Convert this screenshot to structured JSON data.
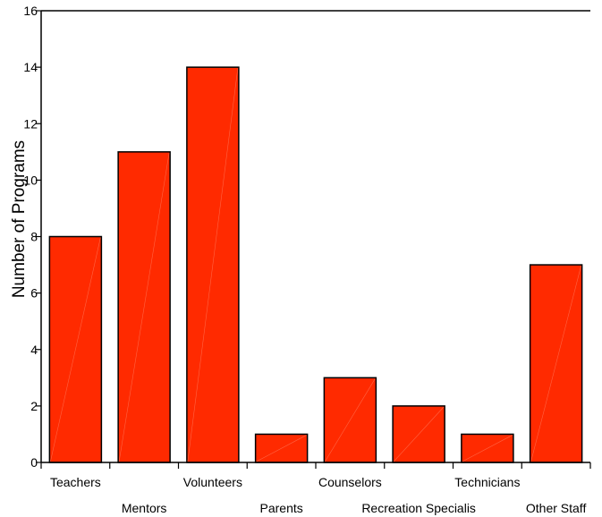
{
  "chart_data": {
    "type": "bar",
    "title": "",
    "xlabel": "",
    "ylabel": "Number of Programs",
    "ylim": [
      0,
      16
    ],
    "yticks": [
      0,
      2,
      4,
      6,
      8,
      10,
      12,
      14,
      16
    ],
    "categories": [
      "Teachers",
      "Mentors",
      "Volunteers",
      "Parents",
      "Counselors",
      "Recreation Specialis",
      "Technicians",
      "Other Staff"
    ],
    "values": [
      8,
      11,
      14,
      1,
      3,
      2,
      1,
      7
    ],
    "bar_color": "#ff2a00",
    "grid": false,
    "legend": "none"
  }
}
